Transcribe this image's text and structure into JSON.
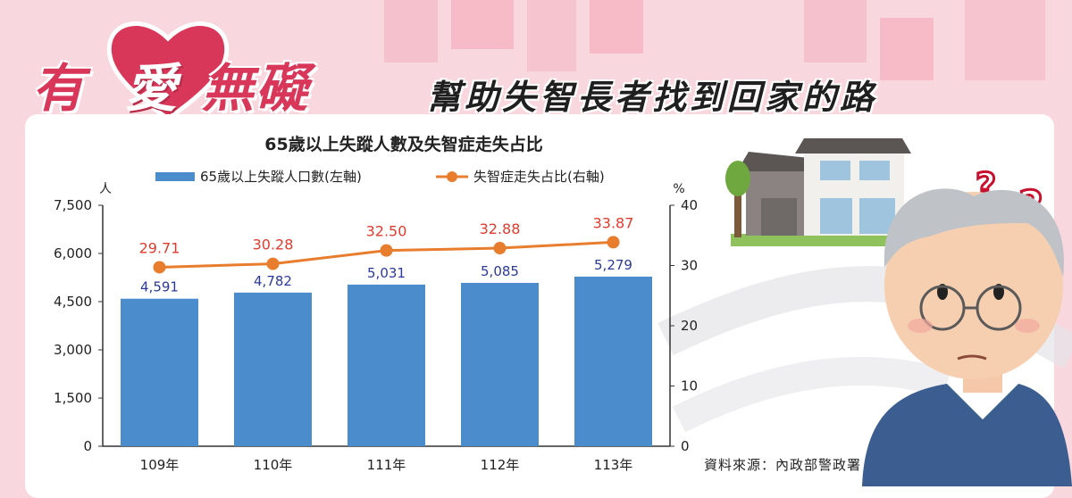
{
  "header": {
    "title_part1": "有",
    "title_heart": "愛",
    "title_part2": "無礙",
    "subtitle": "幫助失智長者找到回家的路"
  },
  "source": "資料來源：內政部警政署",
  "colors": {
    "bar": "#4a8ccc",
    "line": "#e87d2e",
    "line_label": "#e23b2e",
    "bar_label": "#2b3a99",
    "accent": "#d9375a"
  },
  "chart_data": {
    "type": "bar",
    "title": "65歲以上失蹤人數及失智症走失占比",
    "categories": [
      "109年",
      "110年",
      "111年",
      "112年",
      "113年"
    ],
    "series": [
      {
        "name": "65歲以上失蹤人口數(左軸)",
        "type": "bar",
        "axis": "left",
        "values": [
          4591,
          4782,
          5031,
          5085,
          5279
        ],
        "labels": [
          "4,591",
          "4,782",
          "5,031",
          "5,085",
          "5,279"
        ]
      },
      {
        "name": "失智症走失占比(右軸)",
        "type": "line",
        "axis": "right",
        "values": [
          29.71,
          30.28,
          32.5,
          32.88,
          33.87
        ],
        "labels": [
          "29.71",
          "30.28",
          "32.50",
          "32.88",
          "33.87"
        ]
      }
    ],
    "y_left": {
      "unit": "人",
      "ylim": [
        0,
        7500
      ],
      "ticks": [
        "0",
        "1,500",
        "3,000",
        "4,500",
        "6,000",
        "7,500"
      ]
    },
    "y_right": {
      "unit": "%",
      "ylim": [
        0,
        40
      ],
      "ticks": [
        "0",
        "10",
        "20",
        "30",
        "40"
      ]
    },
    "grid": false,
    "legend_position": "top"
  }
}
